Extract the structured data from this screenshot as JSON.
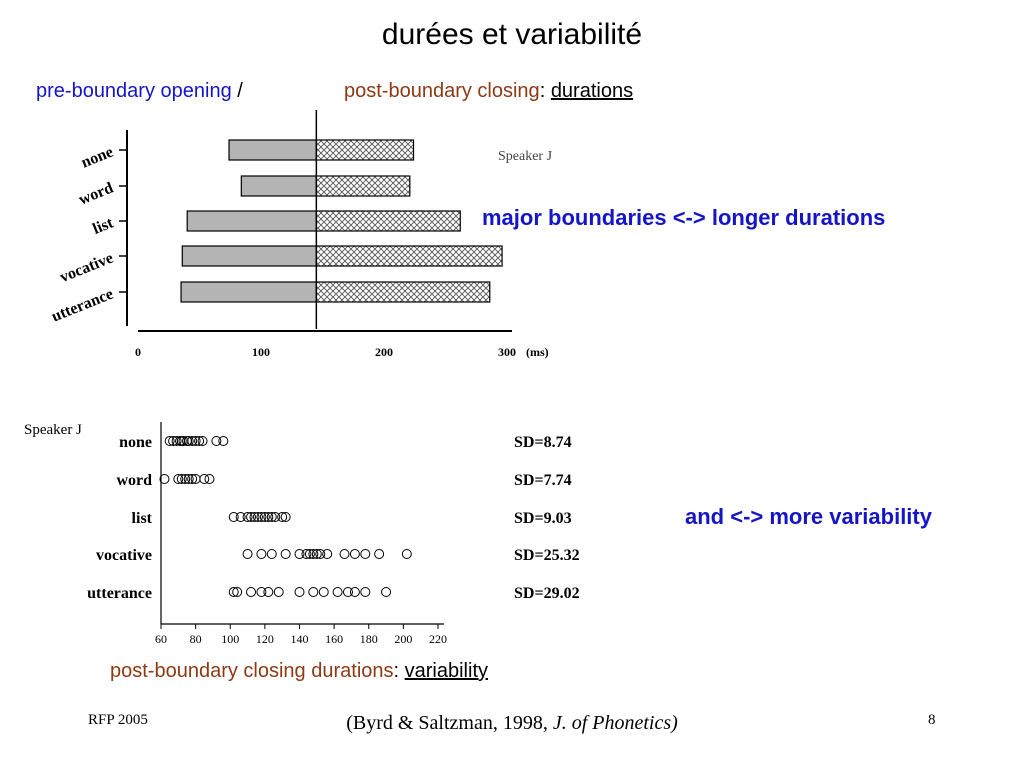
{
  "slide": {
    "title": "durées et variabilité",
    "subtitle": {
      "pre": "pre-boundary opening",
      "sep": " /",
      "post": "post-boundary closing",
      "colon": ":",
      "durations": "durations"
    },
    "callout_top": "major boundaries <-> longer durations",
    "callout_bottom": "and <-> more variability",
    "caption": {
      "main": "post-boundary closing durations",
      "colon": ":",
      "variability": "variability"
    },
    "footer_left": "RFP 2005",
    "citation": {
      "open": "(Byrd & Saltzman, 1998, ",
      "journal": "J. of Phonetics)"
    },
    "page_number": "8"
  },
  "colors": {
    "blue": "#1515c8",
    "brown": "#8b3a14",
    "bar_gray": "#b4b4b4"
  },
  "chart_data": [
    {
      "type": "bar",
      "speaker": "Speaker J",
      "categories": [
        "none",
        "word",
        "list",
        "vocative",
        "utterance"
      ],
      "series": [
        {
          "values": [
            [
              74,
              145
            ],
            [
              84,
              145
            ],
            [
              40,
              145
            ],
            [
              36,
              145
            ],
            [
              35,
              145
            ]
          ]
        },
        {
          "values": [
            [
              145,
              224
            ],
            [
              145,
              221
            ],
            [
              145,
              262
            ],
            [
              145,
              296
            ],
            [
              145,
              286
            ]
          ]
        }
      ],
      "boundary_at": 145,
      "xticks": [
        "0",
        "100",
        "200",
        "300"
      ],
      "xunit": "(ms)",
      "xlim": [
        0,
        300
      ]
    },
    {
      "type": "scatter",
      "speaker": "Speaker J",
      "categories": [
        "none",
        "word",
        "list",
        "vocative",
        "utterance"
      ],
      "points": [
        [
          65,
          67,
          69,
          71,
          72,
          73,
          75,
          76,
          78,
          80,
          82,
          84,
          92,
          96
        ],
        [
          62,
          70,
          72,
          74,
          76,
          78,
          80,
          85,
          88
        ],
        [
          102,
          106,
          110,
          112,
          114,
          116,
          118,
          120,
          122,
          124,
          126,
          130,
          132
        ],
        [
          110,
          118,
          124,
          132,
          140,
          144,
          146,
          148,
          150,
          152,
          156,
          166,
          172,
          178,
          186,
          202
        ],
        [
          102,
          104,
          112,
          118,
          122,
          128,
          140,
          148,
          154,
          162,
          168,
          172,
          178,
          190
        ]
      ],
      "sd_labels": [
        "SD=8.74",
        "SD=7.74",
        "SD=9.03",
        "SD=25.32",
        "SD=29.02"
      ],
      "xticks": [
        "60",
        "80",
        "100",
        "120",
        "140",
        "160",
        "180",
        "200",
        "220"
      ],
      "xlim": [
        60,
        220
      ]
    }
  ]
}
